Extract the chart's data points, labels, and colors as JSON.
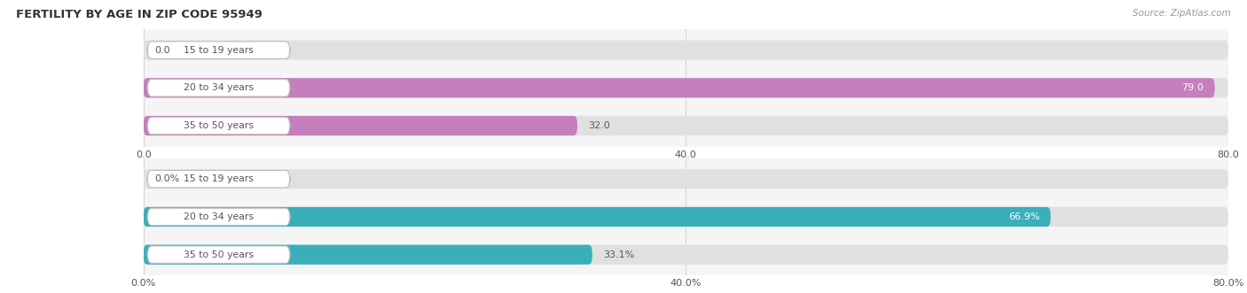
{
  "title": "Female Fertility by Age in Zip Code 95949",
  "title_display": "FERTILITY BY AGE IN ZIP CODE 95949",
  "source": "Source: ZipAtlas.com",
  "top_chart": {
    "categories": [
      "15 to 19 years",
      "20 to 34 years",
      "35 to 50 years"
    ],
    "values": [
      0.0,
      79.0,
      32.0
    ],
    "bar_color": "#c47fbc",
    "bar_bg_color": "#e0e0e0",
    "xlim": [
      0,
      80.0
    ],
    "xticks": [
      0.0,
      40.0,
      80.0
    ],
    "xtick_labels": [
      "0.0",
      "40.0",
      "80.0"
    ],
    "value_label_inside": [
      false,
      true,
      false
    ],
    "show_percent": false
  },
  "bottom_chart": {
    "categories": [
      "15 to 19 years",
      "20 to 34 years",
      "35 to 50 years"
    ],
    "values": [
      0.0,
      66.9,
      33.1
    ],
    "bar_color": "#3aafb9",
    "bar_bg_color": "#e0e0e0",
    "xlim": [
      0,
      80.0
    ],
    "xticks": [
      0.0,
      40.0,
      80.0
    ],
    "xtick_labels": [
      "0.0%",
      "40.0%",
      "80.0%"
    ],
    "value_label_inside": [
      false,
      true,
      false
    ],
    "show_percent": true
  }
}
